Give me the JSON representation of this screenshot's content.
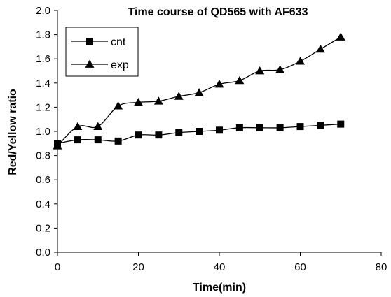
{
  "chart_data": {
    "type": "line",
    "title": "Time course of QD565 with AF633",
    "xlabel": "Time(min)",
    "ylabel": "Red/Yellow ratio",
    "xlim": [
      0,
      80
    ],
    "ylim": [
      0.0,
      2.0
    ],
    "x_ticks": [
      "0",
      "20",
      "40",
      "60",
      "80"
    ],
    "y_ticks": [
      "0.0",
      "0.2",
      "0.4",
      "0.6",
      "0.8",
      "1.0",
      "1.2",
      "1.4",
      "1.6",
      "1.8",
      "2.0"
    ],
    "grid": false,
    "legend_position": "top-left",
    "series": [
      {
        "name": "cnt",
        "marker": "square",
        "color": "#000000",
        "x": [
          0,
          5,
          10,
          15,
          20,
          25,
          30,
          35,
          40,
          45,
          50,
          55,
          60,
          65,
          70
        ],
        "y": [
          0.9,
          0.93,
          0.93,
          0.92,
          0.97,
          0.97,
          0.99,
          1.0,
          1.01,
          1.03,
          1.03,
          1.03,
          1.04,
          1.05,
          1.06
        ]
      },
      {
        "name": "exp",
        "marker": "triangle",
        "color": "#000000",
        "x": [
          0,
          5,
          10,
          15,
          20,
          25,
          30,
          35,
          40,
          45,
          50,
          55,
          60,
          65,
          70
        ],
        "y": [
          0.88,
          1.04,
          1.04,
          1.21,
          1.24,
          1.25,
          1.29,
          1.32,
          1.39,
          1.42,
          1.5,
          1.51,
          1.58,
          1.68,
          1.78
        ]
      }
    ]
  }
}
